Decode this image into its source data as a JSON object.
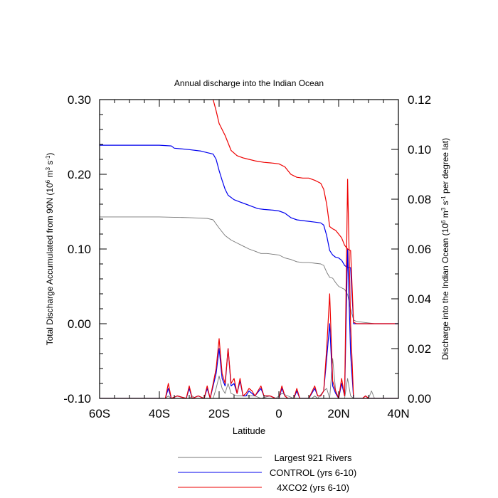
{
  "chart_data": {
    "type": "line",
    "title": "Annual discharge into the Indian Ocean",
    "xlabel": "Latitude",
    "ylabel_left": [
      "Total Discharge Accumulated from 90N (10",
      "6",
      " m",
      "3",
      " s",
      "-1",
      ")"
    ],
    "ylabel_right": [
      "Discharge into the Indian Ocean (10",
      "6",
      " m",
      "3",
      " s",
      "-1",
      " per degree lat)"
    ],
    "xlim": [
      -60,
      40
    ],
    "ylim_left": [
      -0.1,
      0.3
    ],
    "ylim_right": [
      0.0,
      0.12
    ],
    "x_ticks": [
      -60,
      -40,
      -20,
      0,
      20,
      40
    ],
    "x_tick_labels": [
      "60S",
      "40S",
      "20S",
      "0",
      "20N",
      "40N"
    ],
    "y_ticks_left": [
      -0.1,
      0.0,
      0.1,
      0.2,
      0.3
    ],
    "y_tick_labels_left": [
      "-0.10",
      "0.00",
      "0.10",
      "0.20",
      "0.30"
    ],
    "y_ticks_right": [
      0.0,
      0.02,
      0.04,
      0.06,
      0.08,
      0.1,
      0.12
    ],
    "y_tick_labels_right": [
      "0.00",
      "0.02",
      "0.04",
      "0.06",
      "0.08",
      "0.10",
      "0.12"
    ],
    "legend": {
      "placement": "bottom"
    },
    "series": [
      {
        "name": "Largest 921 Rivers",
        "color": "#777777",
        "axis": "left",
        "accumulated": [
          [
            -60,
            0.143
          ],
          [
            -40,
            0.143
          ],
          [
            -30,
            0.142
          ],
          [
            -24,
            0.141
          ],
          [
            -22,
            0.139
          ],
          [
            -20,
            0.128
          ],
          [
            -18,
            0.118
          ],
          [
            -16,
            0.112
          ],
          [
            -14,
            0.108
          ],
          [
            -12,
            0.104
          ],
          [
            -10,
            0.1
          ],
          [
            -8,
            0.097
          ],
          [
            -6,
            0.094
          ],
          [
            -4,
            0.094
          ],
          [
            -2,
            0.093
          ],
          [
            0,
            0.092
          ],
          [
            2,
            0.088
          ],
          [
            4,
            0.086
          ],
          [
            6,
            0.083
          ],
          [
            8,
            0.082
          ],
          [
            10,
            0.082
          ],
          [
            12,
            0.081
          ],
          [
            14,
            0.08
          ],
          [
            15,
            0.078
          ],
          [
            16,
            0.069
          ],
          [
            17,
            0.062
          ],
          [
            18,
            0.061
          ],
          [
            19,
            0.055
          ],
          [
            20,
            0.05
          ],
          [
            21,
            0.048
          ],
          [
            22,
            0.046
          ],
          [
            23,
            0.039
          ],
          [
            24,
            0.02
          ],
          [
            25,
            0.005
          ],
          [
            26,
            0.003
          ],
          [
            28,
            0.002
          ],
          [
            30,
            0.001
          ],
          [
            32,
            0.0
          ],
          [
            40,
            0.0
          ]
        ],
        "per_degree": [
          [
            -60,
            0.0
          ],
          [
            -38,
            0.0
          ],
          [
            -37,
            0.001
          ],
          [
            -36,
            0.0
          ],
          [
            -30,
            0.0
          ],
          [
            -29,
            0.001
          ],
          [
            -28,
            0.0
          ],
          [
            -22,
            0.0
          ],
          [
            -21,
            0.004
          ],
          [
            -20,
            0.009
          ],
          [
            -19,
            0.004
          ],
          [
            -18,
            0.002
          ],
          [
            -17,
            0.006
          ],
          [
            -16,
            0.002
          ],
          [
            -14,
            0.001
          ],
          [
            -12,
            0.001
          ],
          [
            -10,
            0.001
          ],
          [
            -8,
            0.001
          ],
          [
            -6,
            0.0
          ],
          [
            -3,
            0.001
          ],
          [
            -1,
            0.0
          ],
          [
            1,
            0.002
          ],
          [
            3,
            0.001
          ],
          [
            5,
            0.0
          ],
          [
            11,
            0.0
          ],
          [
            12,
            0.001
          ],
          [
            13,
            0.0
          ],
          [
            15,
            0.003
          ],
          [
            16,
            0.004
          ],
          [
            17,
            0.0
          ],
          [
            18,
            0.016
          ],
          [
            19,
            0.003
          ],
          [
            20,
            0.0
          ],
          [
            22,
            0.0
          ],
          [
            23,
            0.008
          ],
          [
            24,
            0.001
          ],
          [
            25,
            0.0
          ],
          [
            30,
            0.0
          ],
          [
            31,
            0.003
          ],
          [
            32,
            0.0
          ],
          [
            40,
            0.0
          ]
        ]
      },
      {
        "name": "CONTROL (yrs 6-10)",
        "color": "#0000ee",
        "axis": "left",
        "accumulated": [
          [
            -60,
            0.239
          ],
          [
            -40,
            0.239
          ],
          [
            -36,
            0.238
          ],
          [
            -35,
            0.235
          ],
          [
            -30,
            0.233
          ],
          [
            -26,
            0.231
          ],
          [
            -24,
            0.229
          ],
          [
            -22,
            0.227
          ],
          [
            -21,
            0.22
          ],
          [
            -20,
            0.205
          ],
          [
            -19,
            0.192
          ],
          [
            -18,
            0.18
          ],
          [
            -17,
            0.172
          ],
          [
            -15,
            0.166
          ],
          [
            -13,
            0.163
          ],
          [
            -11,
            0.16
          ],
          [
            -9,
            0.157
          ],
          [
            -7,
            0.154
          ],
          [
            -5,
            0.153
          ],
          [
            -2,
            0.152
          ],
          [
            0,
            0.151
          ],
          [
            2,
            0.148
          ],
          [
            4,
            0.142
          ],
          [
            6,
            0.139
          ],
          [
            8,
            0.138
          ],
          [
            10,
            0.137
          ],
          [
            12,
            0.136
          ],
          [
            14,
            0.135
          ],
          [
            15,
            0.132
          ],
          [
            16,
            0.118
          ],
          [
            17,
            0.098
          ],
          [
            18,
            0.092
          ],
          [
            19,
            0.089
          ],
          [
            20,
            0.088
          ],
          [
            21,
            0.085
          ],
          [
            22,
            0.078
          ],
          [
            23,
            0.075
          ],
          [
            24,
            0.075
          ],
          [
            25,
            0.0
          ],
          [
            26,
            0.0
          ],
          [
            40,
            0.0
          ]
        ],
        "per_degree": [
          [
            -60,
            0.0
          ],
          [
            -38,
            0.0
          ],
          [
            -37,
            0.004
          ],
          [
            -36,
            0.0
          ],
          [
            -34,
            0.001
          ],
          [
            -31,
            0.0
          ],
          [
            -30,
            0.004
          ],
          [
            -29,
            0.0
          ],
          [
            -27,
            0.001
          ],
          [
            -25,
            0.0
          ],
          [
            -24,
            0.004
          ],
          [
            -23,
            0.0
          ],
          [
            -21,
            0.01
          ],
          [
            -20,
            0.02
          ],
          [
            -19,
            0.008
          ],
          [
            -18,
            0.005
          ],
          [
            -17,
            0.02
          ],
          [
            -16,
            0.005
          ],
          [
            -15,
            0.006
          ],
          [
            -14,
            0.002
          ],
          [
            -13,
            0.007
          ],
          [
            -12,
            0.001
          ],
          [
            -11,
            0.001
          ],
          [
            -10,
            0.003
          ],
          [
            -9,
            0.002
          ],
          [
            -8,
            0.001
          ],
          [
            -6,
            0.004
          ],
          [
            -5,
            0.001
          ],
          [
            -3,
            0.001
          ],
          [
            -1,
            0.0
          ],
          [
            0,
            0.0
          ],
          [
            1,
            0.004
          ],
          [
            2,
            0.001
          ],
          [
            3,
            0.0
          ],
          [
            5,
            0.0
          ],
          [
            6,
            0.003
          ],
          [
            7,
            0.0
          ],
          [
            10,
            0.0
          ],
          [
            12,
            0.004
          ],
          [
            13,
            0.001
          ],
          [
            14,
            0.001
          ],
          [
            15,
            0.003
          ],
          [
            16,
            0.016
          ],
          [
            17,
            0.03
          ],
          [
            18,
            0.005
          ],
          [
            19,
            0.002
          ],
          [
            20,
            0.0
          ],
          [
            21,
            0.006
          ],
          [
            22,
            0.001
          ],
          [
            23,
            0.06
          ],
          [
            24,
            0.018
          ],
          [
            25,
            0.0
          ],
          [
            28,
            0.0
          ],
          [
            29,
            0.001
          ],
          [
            30,
            0.0
          ],
          [
            40,
            0.0
          ]
        ]
      },
      {
        "name": "4XCO2 (yrs 6-10)",
        "color": "#ee0000",
        "axis": "left",
        "accumulated": [
          [
            -22,
            0.3
          ],
          [
            -21,
            0.285
          ],
          [
            -20,
            0.268
          ],
          [
            -18,
            0.252
          ],
          [
            -16,
            0.232
          ],
          [
            -14,
            0.225
          ],
          [
            -12,
            0.222
          ],
          [
            -10,
            0.22
          ],
          [
            -8,
            0.218
          ],
          [
            -5,
            0.216
          ],
          [
            -2,
            0.215
          ],
          [
            0,
            0.214
          ],
          [
            2,
            0.21
          ],
          [
            4,
            0.2
          ],
          [
            6,
            0.196
          ],
          [
            8,
            0.195
          ],
          [
            10,
            0.195
          ],
          [
            12,
            0.192
          ],
          [
            14,
            0.188
          ],
          [
            15,
            0.18
          ],
          [
            16,
            0.16
          ],
          [
            17,
            0.13
          ],
          [
            18,
            0.127
          ],
          [
            19,
            0.125
          ],
          [
            20,
            0.12
          ],
          [
            21,
            0.115
          ],
          [
            22,
            0.105
          ],
          [
            23,
            0.1
          ],
          [
            24,
            0.098
          ],
          [
            25,
            0.002
          ],
          [
            26,
            0.0
          ],
          [
            40,
            0.0
          ]
        ],
        "per_degree": [
          [
            -60,
            0.0
          ],
          [
            -38,
            0.0
          ],
          [
            -37,
            0.006
          ],
          [
            -36,
            0.0
          ],
          [
            -34,
            0.001
          ],
          [
            -31,
            0.0
          ],
          [
            -30,
            0.005
          ],
          [
            -29,
            0.0
          ],
          [
            -27,
            0.001
          ],
          [
            -25,
            0.0
          ],
          [
            -24,
            0.005
          ],
          [
            -23,
            0.0
          ],
          [
            -21,
            0.012
          ],
          [
            -20,
            0.024
          ],
          [
            -19,
            0.01
          ],
          [
            -18,
            0.006
          ],
          [
            -17,
            0.02
          ],
          [
            -16,
            0.006
          ],
          [
            -15,
            0.008
          ],
          [
            -14,
            0.002
          ],
          [
            -13,
            0.008
          ],
          [
            -12,
            0.001
          ],
          [
            -11,
            0.002
          ],
          [
            -10,
            0.004
          ],
          [
            -9,
            0.003
          ],
          [
            -8,
            0.001
          ],
          [
            -6,
            0.005
          ],
          [
            -5,
            0.001
          ],
          [
            -3,
            0.001
          ],
          [
            -1,
            0.0
          ],
          [
            0,
            0.0
          ],
          [
            1,
            0.005
          ],
          [
            2,
            0.001
          ],
          [
            3,
            0.0
          ],
          [
            5,
            0.0
          ],
          [
            6,
            0.004
          ],
          [
            7,
            0.0
          ],
          [
            10,
            0.0
          ],
          [
            12,
            0.005
          ],
          [
            13,
            0.001
          ],
          [
            14,
            0.001
          ],
          [
            15,
            0.003
          ],
          [
            16,
            0.02
          ],
          [
            17,
            0.042
          ],
          [
            18,
            0.007
          ],
          [
            19,
            0.003
          ],
          [
            20,
            0.0
          ],
          [
            21,
            0.008
          ],
          [
            22,
            0.001
          ],
          [
            23,
            0.088
          ],
          [
            24,
            0.03
          ],
          [
            25,
            0.0
          ],
          [
            28,
            0.0
          ],
          [
            29,
            0.001
          ],
          [
            30,
            0.0
          ],
          [
            40,
            0.0
          ]
        ]
      }
    ]
  }
}
